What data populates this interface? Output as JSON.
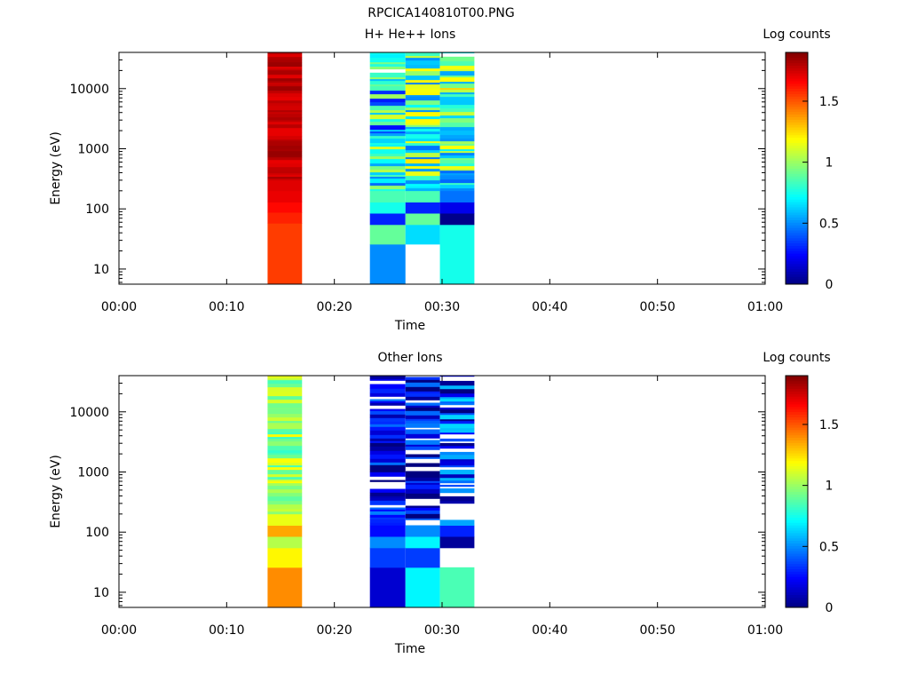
{
  "figure_title": "RPCICA140810T00.PNG",
  "colormap": [
    "#00007f",
    "#0000ff",
    "#007fff",
    "#00ffff",
    "#7fff7f",
    "#ffff00",
    "#ff7f00",
    "#ff0000",
    "#7f0000"
  ],
  "chart_data": [
    {
      "type": "heatmap",
      "title": "H+ He++ Ions",
      "xlabel": "Time",
      "ylabel": "Energy (eV)",
      "x_ticks": [
        "00:00",
        "00:10",
        "00:20",
        "00:30",
        "00:40",
        "00:50",
        "01:00"
      ],
      "xlim_minutes": [
        0,
        60
      ],
      "ylim_eV": [
        5.6,
        40000
      ],
      "y_scale": "log",
      "y_ticks": [
        {
          "value": 10,
          "label": "10"
        },
        {
          "value": 100,
          "label": "100"
        },
        {
          "value": 1000,
          "label": "1000"
        },
        {
          "value": 10000,
          "label": "10000"
        }
      ],
      "colorbar": {
        "label": "Log counts",
        "range": [
          0,
          1.9
        ],
        "ticks": [
          {
            "value": 0,
            "label": "0"
          },
          {
            "value": 0.5,
            "label": "0.5"
          },
          {
            "value": 1,
            "label": "1"
          },
          {
            "value": 1.5,
            "label": "1.5"
          }
        ]
      },
      "columns": [
        {
          "t_start": 13.8,
          "t_end": 17.0,
          "seed": 11,
          "low_bins": [
            {
              "e_lo": 5.6,
              "e_hi": 58,
              "value": 1.55
            },
            {
              "e_lo": 58,
              "e_hi": 88,
              "value": 1.6
            },
            {
              "e_lo": 88,
              "e_hi": 130,
              "value": 1.65
            },
            {
              "e_lo": 130,
              "e_hi": 200,
              "value": 1.7
            },
            {
              "e_lo": 200,
              "e_hi": 300,
              "value": 1.72
            }
          ],
          "high": {
            "e_lo": 300,
            "mean": 1.78,
            "spread": 0.08,
            "drop": 0
          }
        },
        {
          "t_start": 23.3,
          "t_end": 26.6,
          "seed": 23,
          "low_bins": [
            {
              "e_lo": 5.6,
              "e_hi": 26,
              "value": 0.5
            },
            {
              "e_lo": 26,
              "e_hi": 55,
              "value": 0.9
            },
            {
              "e_lo": 55,
              "e_hi": 85,
              "value": 0.3
            },
            {
              "e_lo": 85,
              "e_hi": 130,
              "value": 0.75
            },
            {
              "e_lo": 130,
              "e_hi": 200,
              "value": 0.85
            }
          ],
          "high": {
            "e_lo": 200,
            "mean": 0.7,
            "spread": 0.45,
            "drop": 0.04
          }
        },
        {
          "t_start": 26.6,
          "t_end": 29.8,
          "seed": 37,
          "low_bins": [
            {
              "e_lo": 26,
              "e_hi": 55,
              "value": 0.65
            },
            {
              "e_lo": 55,
              "e_hi": 85,
              "value": 0.9
            },
            {
              "e_lo": 85,
              "e_hi": 130,
              "value": 0.3
            },
            {
              "e_lo": 130,
              "e_hi": 200,
              "value": 0.85
            }
          ],
          "high": {
            "e_lo": 200,
            "mean": 0.85,
            "spread": 0.4,
            "drop": 0.02
          }
        },
        {
          "t_start": 29.8,
          "t_end": 33.0,
          "seed": 53,
          "low_bins": [
            {
              "e_lo": 5.6,
              "e_hi": 55,
              "value": 0.75
            },
            {
              "e_lo": 55,
              "e_hi": 85,
              "value": 0.02
            },
            {
              "e_lo": 85,
              "e_hi": 130,
              "value": 0.2
            },
            {
              "e_lo": 130,
              "e_hi": 200,
              "value": 0.45
            }
          ],
          "high": {
            "e_lo": 200,
            "mean": 0.85,
            "spread": 0.45,
            "drop": 0.03
          }
        }
      ]
    },
    {
      "type": "heatmap",
      "title": "Other Ions",
      "xlabel": "Time",
      "ylabel": "Energy (eV)",
      "x_ticks": [
        "00:00",
        "00:10",
        "00:20",
        "00:30",
        "00:40",
        "00:50",
        "01:00"
      ],
      "xlim_minutes": [
        0,
        60
      ],
      "ylim_eV": [
        5.6,
        40000
      ],
      "y_scale": "log",
      "y_ticks": [
        {
          "value": 10,
          "label": "10"
        },
        {
          "value": 100,
          "label": "100"
        },
        {
          "value": 1000,
          "label": "1000"
        },
        {
          "value": 10000,
          "label": "10000"
        }
      ],
      "colorbar": {
        "label": "Log counts",
        "range": [
          0,
          1.9
        ],
        "ticks": [
          {
            "value": 0,
            "label": "0"
          },
          {
            "value": 0.5,
            "label": "0.5"
          },
          {
            "value": 1,
            "label": "1"
          },
          {
            "value": 1.5,
            "label": "1.5"
          }
        ]
      },
      "columns": [
        {
          "t_start": 13.8,
          "t_end": 17.0,
          "seed": 71,
          "low_bins": [
            {
              "e_lo": 5.6,
              "e_hi": 26,
              "value": 1.4
            },
            {
              "e_lo": 26,
              "e_hi": 55,
              "value": 1.2
            },
            {
              "e_lo": 55,
              "e_hi": 85,
              "value": 1.05
            },
            {
              "e_lo": 85,
              "e_hi": 130,
              "value": 1.35
            },
            {
              "e_lo": 130,
              "e_hi": 200,
              "value": 1.15
            }
          ],
          "high": {
            "e_lo": 200,
            "mean": 1.0,
            "spread": 0.2,
            "drop": 0
          }
        },
        {
          "t_start": 23.3,
          "t_end": 26.6,
          "seed": 83,
          "low_bins": [
            {
              "e_lo": 5.6,
              "e_hi": 26,
              "value": 0.15
            },
            {
              "e_lo": 26,
              "e_hi": 55,
              "value": 0.35
            },
            {
              "e_lo": 55,
              "e_hi": 85,
              "value": 0.5
            },
            {
              "e_lo": 85,
              "e_hi": 130,
              "value": 0.25
            }
          ],
          "high": {
            "e_lo": 130,
            "mean": 0.2,
            "spread": 0.3,
            "drop": 0.12
          }
        },
        {
          "t_start": 26.6,
          "t_end": 29.8,
          "seed": 97,
          "low_bins": [
            {
              "e_lo": 5.6,
              "e_hi": 26,
              "value": 0.7
            },
            {
              "e_lo": 26,
              "e_hi": 55,
              "value": 0.35
            },
            {
              "e_lo": 55,
              "e_hi": 85,
              "value": 0.7
            },
            {
              "e_lo": 85,
              "e_hi": 130,
              "value": 0.5
            }
          ],
          "high": {
            "e_lo": 130,
            "mean": 0.2,
            "spread": 0.3,
            "drop": 0.15
          }
        },
        {
          "t_start": 29.8,
          "t_end": 33.0,
          "seed": 113,
          "low_bins": [
            {
              "e_lo": 5.6,
              "e_hi": 26,
              "value": 0.85
            },
            {
              "e_lo": 55,
              "e_hi": 85,
              "value": 0.05
            },
            {
              "e_lo": 85,
              "e_hi": 130,
              "value": 0.3
            },
            {
              "e_lo": 130,
              "e_hi": 160,
              "value": 0.55
            }
          ],
          "high": {
            "e_lo": 300,
            "mean": 0.3,
            "spread": 0.35,
            "drop": 0.18
          }
        }
      ]
    }
  ]
}
